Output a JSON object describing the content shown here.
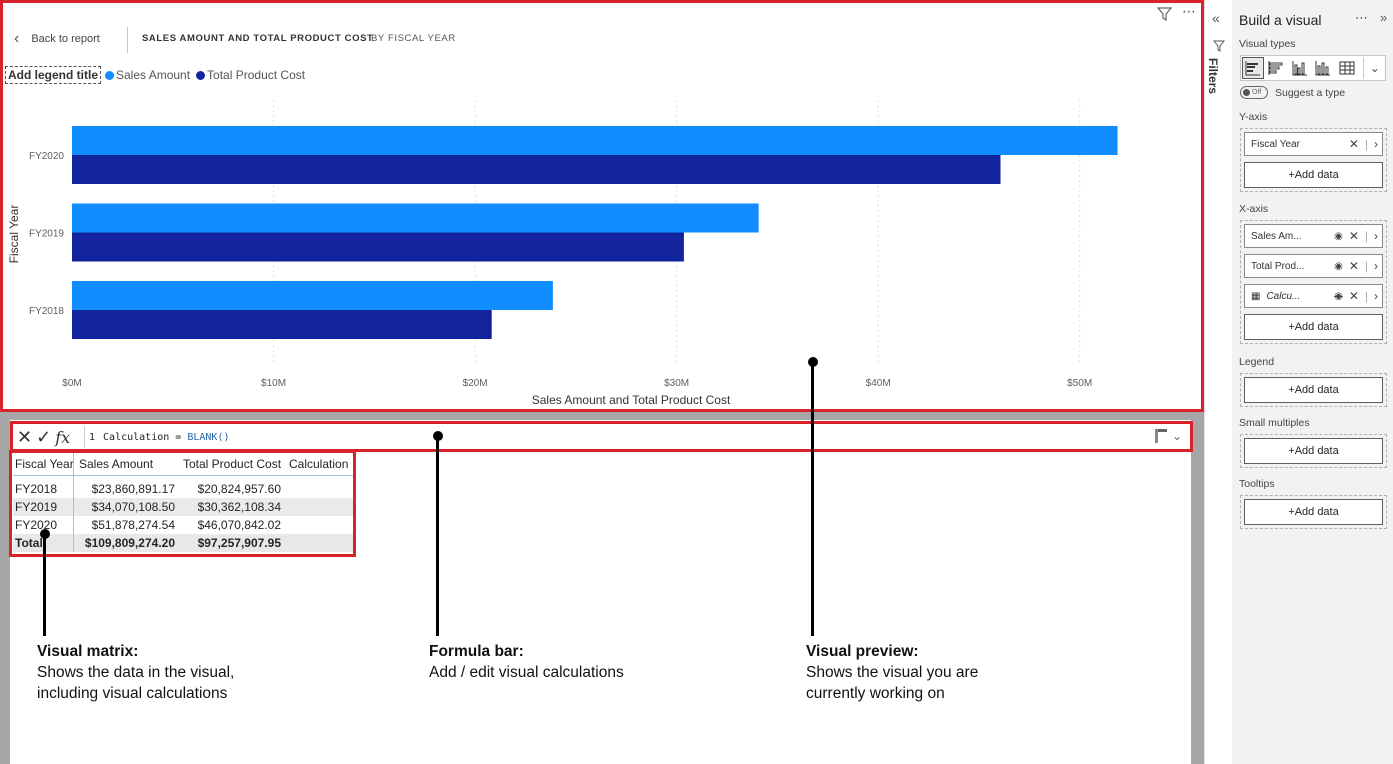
{
  "header": {
    "back_label": "Back to report",
    "title": "SALES AMOUNT AND TOTAL PRODUCT COST",
    "subtitle": "BY FISCAL YEAR"
  },
  "legend": {
    "title": "Add legend title",
    "items": [
      {
        "label": "Sales Amount",
        "color": "#118dff"
      },
      {
        "label": "Total Product Cost",
        "color": "#12239e"
      }
    ]
  },
  "chart_data": {
    "type": "bar",
    "orientation": "horizontal",
    "categories": [
      "FY2020",
      "FY2019",
      "FY2018"
    ],
    "series": [
      {
        "name": "Sales Amount",
        "color": "#118dff",
        "values": [
          51878274.54,
          34070108.5,
          23860891.17
        ]
      },
      {
        "name": "Total Product Cost",
        "color": "#12239e",
        "values": [
          46070842.02,
          30362108.34,
          20824957.6
        ]
      }
    ],
    "xlabel": "Sales Amount and Total Product Cost",
    "ylabel": "Fiscal Year",
    "xlim": [
      0,
      52000000
    ],
    "x_ticks": [
      0,
      10000000,
      20000000,
      30000000,
      40000000,
      50000000
    ],
    "x_tick_labels": [
      "$0M",
      "$10M",
      "$20M",
      "$30M",
      "$40M",
      "$50M"
    ],
    "grid": true,
    "legend_position": "top-left"
  },
  "formula": {
    "line_no": "1",
    "text": "Calculation = ",
    "func": "BLANK()"
  },
  "matrix": {
    "headers": [
      "Fiscal Year",
      "Sales Amount",
      "Total Product Cost",
      "Calculation"
    ],
    "rows": [
      [
        "FY2018",
        "$23,860,891.17",
        "$20,824,957.60",
        ""
      ],
      [
        "FY2019",
        "$34,070,108.50",
        "$30,362,108.34",
        ""
      ],
      [
        "FY2020",
        "$51,878,274.54",
        "$46,070,842.02",
        ""
      ]
    ],
    "total": [
      "Total",
      "$109,809,274.20",
      "$97,257,907.95",
      ""
    ]
  },
  "annotations": {
    "matrix": {
      "title": "Visual matrix:",
      "line1": "Shows the data in the visual,",
      "line2": "including visual calculations"
    },
    "formula": {
      "title": "Formula bar:",
      "line1": "Add / edit visual calculations"
    },
    "preview": {
      "title": "Visual preview:",
      "line1": "Shows the visual you are",
      "line2": "currently working on"
    }
  },
  "filters_label": "Filters",
  "build": {
    "title": "Build a visual",
    "visual_types_label": "Visual types",
    "toggle_label": "Off",
    "suggest_label": "Suggest a type",
    "y_axis_label": "Y-axis",
    "y_fields": [
      "Fiscal Year"
    ],
    "x_axis_label": "X-axis",
    "x_fields": [
      "Sales Am...",
      "Total Prod...",
      "Calcu..."
    ],
    "legend_label": "Legend",
    "small_multiples_label": "Small multiples",
    "tooltips_label": "Tooltips",
    "add_data": "+Add data"
  }
}
